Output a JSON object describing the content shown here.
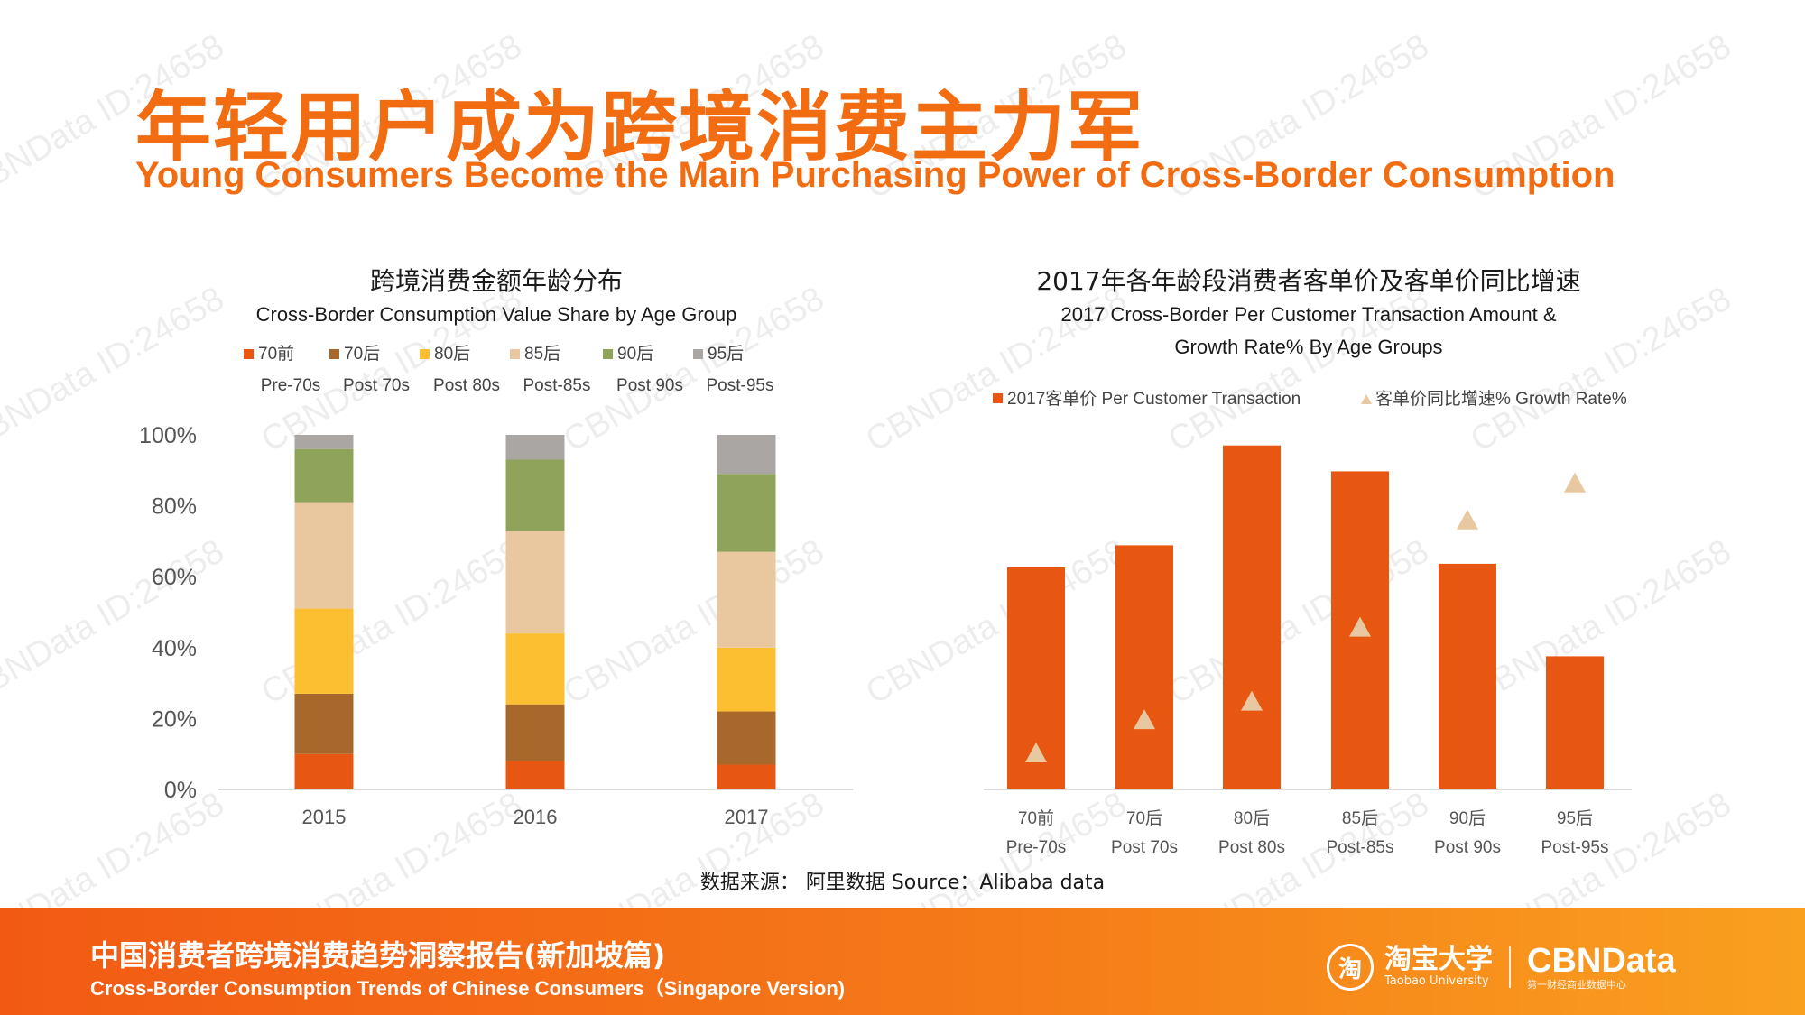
{
  "header": {
    "title_zh": "年轻用户成为跨境消费主力军",
    "title_en": "Young Consumers Become the Main Purchasing Power of Cross-Border Consumption"
  },
  "colors": {
    "accent": "#f26c12",
    "pre70": "#e85712",
    "post70": "#a9682b",
    "post80": "#fcbf32",
    "post85": "#e9c8a0",
    "post90": "#8fa35a",
    "post95": "#aaa6a4",
    "triangle": "#e8c8a0"
  },
  "chart_data": [
    {
      "type": "bar",
      "stacked": true,
      "title_zh": "跨境消费金额年龄分布",
      "title": "Cross-Border Consumption Value Share by Age Group",
      "categories": [
        "2015",
        "2016",
        "2017"
      ],
      "series": [
        {
          "name": "70前",
          "name_en": "Pre-70s",
          "values": [
            10,
            8,
            7
          ]
        },
        {
          "name": "70后",
          "name_en": "Post 70s",
          "values": [
            17,
            16,
            15
          ]
        },
        {
          "name": "80后",
          "name_en": "Post 80s",
          "values": [
            24,
            20,
            18
          ]
        },
        {
          "name": "85后",
          "name_en": "Post-85s",
          "values": [
            30,
            29,
            27
          ]
        },
        {
          "name": "90后",
          "name_en": "Post 90s",
          "values": [
            15,
            20,
            22
          ]
        },
        {
          "name": "95后",
          "name_en": "Post-95s",
          "values": [
            4,
            7,
            11
          ]
        }
      ],
      "ylim": [
        0,
        100
      ],
      "yticks": [
        "0%",
        "20%",
        "40%",
        "60%",
        "80%",
        "100%"
      ],
      "legend": "top"
    },
    {
      "type": "bar",
      "title_zh": "2017年各年龄段消费者客单价及客单价同比增速",
      "title_line1": "2017 Cross-Border Per Customer Transaction Amount &",
      "title_line2": "Growth Rate% By Age Groups",
      "categories": [
        "70前",
        "70后",
        "80后",
        "85后",
        "90后",
        "95后"
      ],
      "categories_en": [
        "Pre-70s",
        "Post 70s",
        "Post 80s",
        "Post-85s",
        "Post 90s",
        "Post-95s"
      ],
      "series": [
        {
          "name": "2017客单价 Per Customer Transaction",
          "kind": "bar",
          "values": [
            60,
            66,
            93,
            86,
            61,
            36
          ]
        },
        {
          "name": "客单价同比增速% Growth Rate%",
          "kind": "marker",
          "values": [
            10,
            19,
            24,
            44,
            73,
            83
          ]
        }
      ],
      "ylim": [
        0,
        100
      ],
      "legend": "top"
    }
  ],
  "source": "数据来源：  阿里数据  Source：Alibaba data",
  "footer": {
    "title_zh": "中国消费者跨境消费趋势洞察报告(新加坡篇)",
    "title_en": "Cross-Border Consumption Trends of Chinese Consumers（Singapore Version)",
    "logo_icon": "淘",
    "logo_zh": "淘宝大学",
    "logo_en": "Taobao University",
    "brand": "CBNData",
    "brand_sub": "第一财经商业数据中心"
  },
  "watermark": "CBNData ID:24658"
}
